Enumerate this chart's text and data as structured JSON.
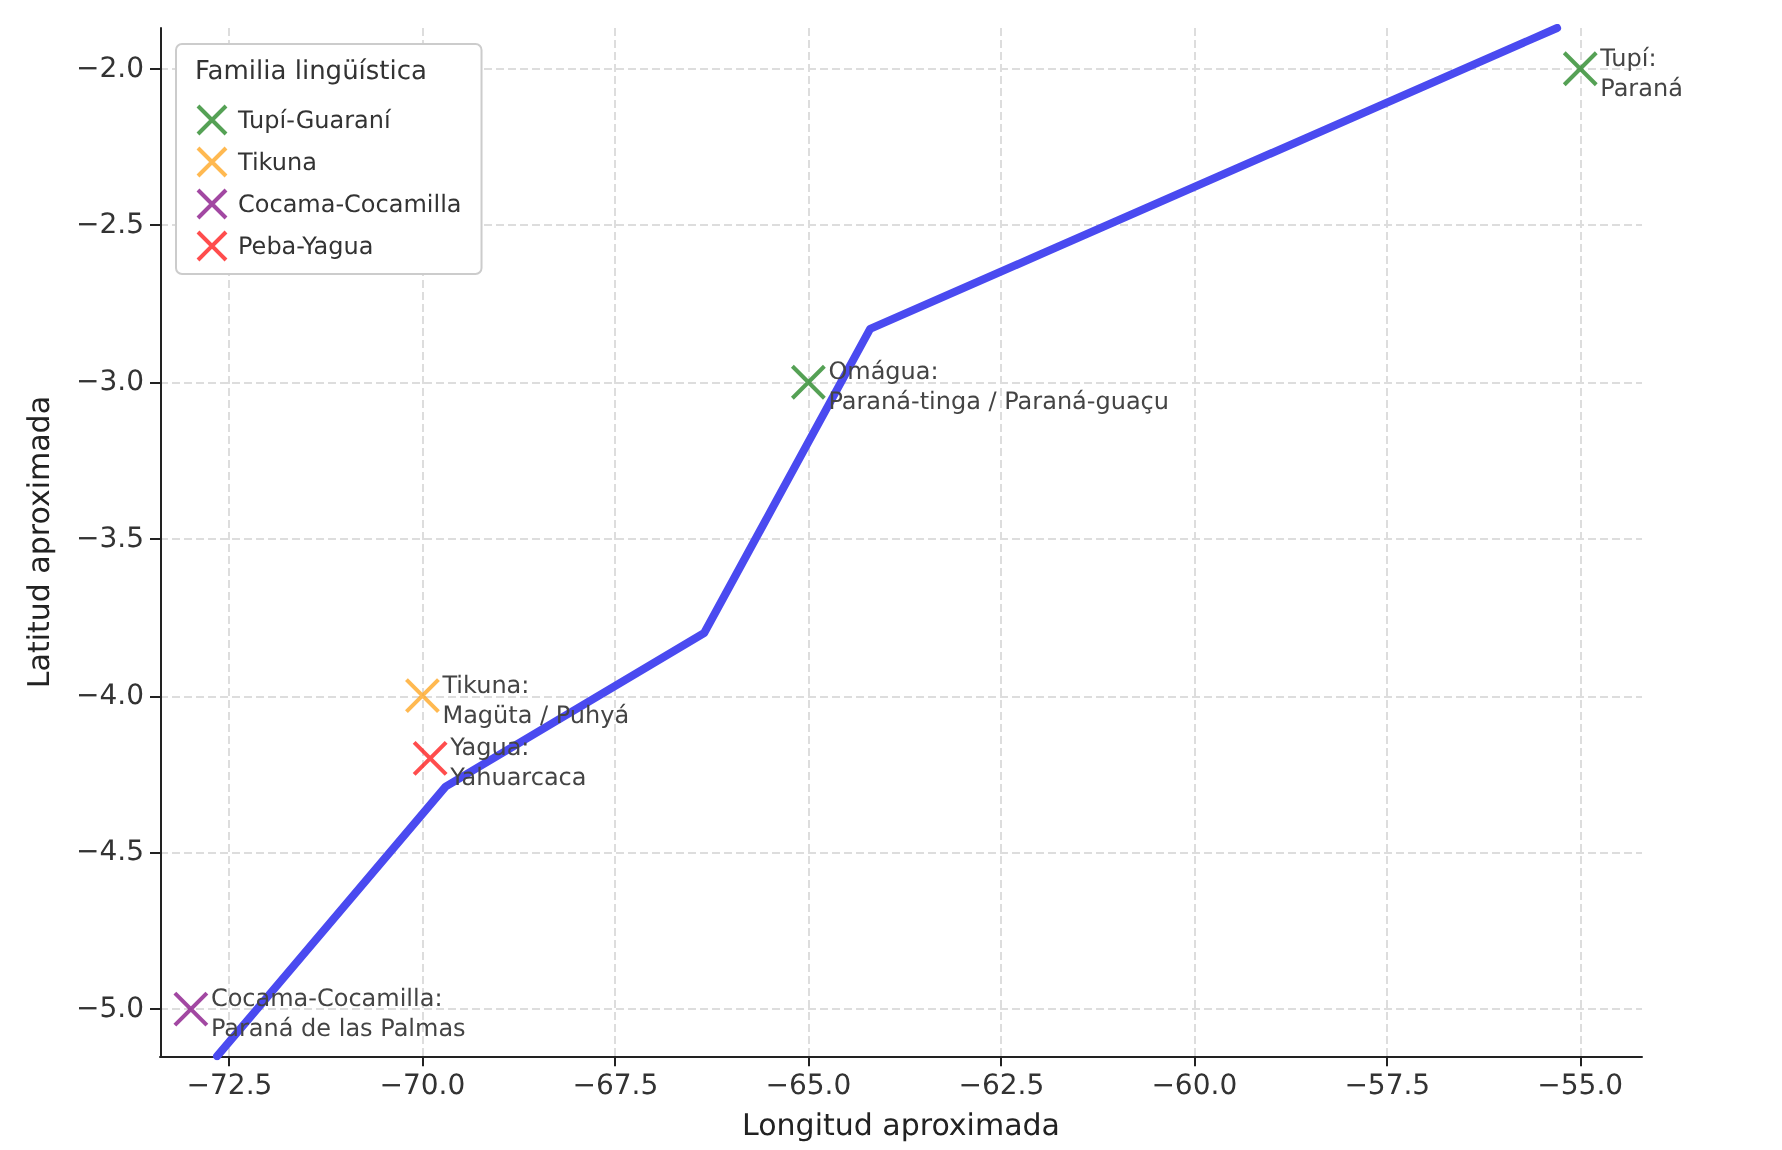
{
  "chart_data": {
    "type": "scatter",
    "xlabel": "Longitud aproximada",
    "ylabel": "Latitud aproximada",
    "legend_title": "Familia lingüística",
    "legend": "top left",
    "grid": true,
    "marker": "cross",
    "xlim": [
      -73.4,
      -54.2
    ],
    "ylim": [
      -5.15,
      -1.87
    ],
    "xticks": [
      {
        "value": -72.5,
        "label": "−72.5"
      },
      {
        "value": -70,
        "label": "−70.0"
      },
      {
        "value": -67.5,
        "label": "−67.5"
      },
      {
        "value": -65,
        "label": "−65.0"
      },
      {
        "value": -62.5,
        "label": "−62.5"
      },
      {
        "value": -60,
        "label": "−60.0"
      },
      {
        "value": -57.5,
        "label": "−57.5"
      },
      {
        "value": -55,
        "label": "−55.0"
      }
    ],
    "yticks": [
      {
        "value": -5,
        "label": "−5.0"
      },
      {
        "value": -4.5,
        "label": "−4.5"
      },
      {
        "value": -4,
        "label": "−4.0"
      },
      {
        "value": -3.5,
        "label": "−3.5"
      },
      {
        "value": -3,
        "label": "−3.0"
      },
      {
        "value": -2.5,
        "label": "−2.5"
      },
      {
        "value": -2,
        "label": "−2.0"
      }
    ],
    "series": [
      {
        "type": "line",
        "color": "#4a4af0",
        "line_style": "solid",
        "marker": "none",
        "x": [
          -72.66,
          -69.7,
          -66.35,
          -64.2,
          -55.3
        ],
        "values": [
          -5.15,
          -4.29,
          -3.8,
          -2.83,
          -1.87
        ]
      },
      {
        "name": "Tupí-Guaraní",
        "color": "#2a8a2a",
        "x": [
          -55,
          -65
        ],
        "values": [
          -2,
          -3
        ]
      },
      {
        "name": "Tikuna",
        "color": "#ffa726",
        "x": [
          -70
        ],
        "values": [
          -4
        ]
      },
      {
        "name": "Cocama-Cocamilla",
        "color": "#8b1a8b",
        "x": [
          -73
        ],
        "values": [
          -5
        ]
      },
      {
        "name": "Peba-Yagua",
        "color": "#ff2020",
        "x": [
          -69.9
        ],
        "values": [
          -4.2
        ]
      }
    ],
    "annotations": [
      {
        "text": "Tupí:\nParaná",
        "x": -55,
        "y": -2
      },
      {
        "text": "Omágua:\nParaná-tinga / Paraná-guaçu",
        "x": -65,
        "y": -3
      },
      {
        "text": "Tikuna:\nMagüta / Puhyá",
        "x": -70,
        "y": -4
      },
      {
        "text": "Yagua:\nYahuarcaca",
        "x": -69.9,
        "y": -4.2
      },
      {
        "text": "Cocama-Cocamilla:\nParaná de las Palmas",
        "x": -73,
        "y": -5
      }
    ]
  }
}
